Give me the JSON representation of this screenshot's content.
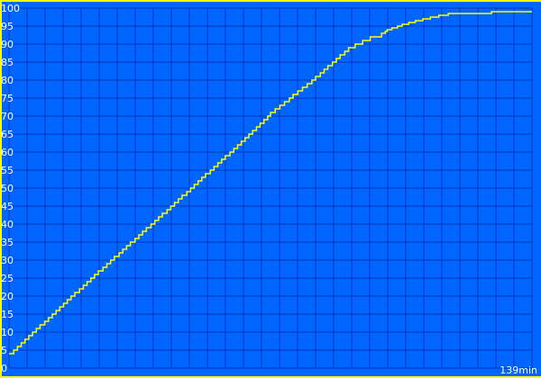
{
  "chart_data": {
    "type": "line",
    "title": "",
    "xlabel": "",
    "ylabel": "",
    "x_unit_label": "139min",
    "xlim": [
      0,
      139
    ],
    "ylim": [
      0,
      100
    ],
    "yticks": [
      0,
      5,
      10,
      15,
      20,
      25,
      30,
      35,
      40,
      45,
      50,
      55,
      60,
      65,
      70,
      75,
      80,
      85,
      90,
      95,
      100
    ],
    "ytick_labels": [
      "0",
      "5",
      "10",
      "15",
      "20",
      "25",
      "30",
      "35",
      "40",
      "45",
      "50",
      "55",
      "60",
      "65",
      "70",
      "75",
      "80",
      "85",
      "90",
      "95",
      "100"
    ],
    "grid": true,
    "step": true,
    "series": [
      {
        "color": "#ffff00",
        "x": [
          0,
          21.6,
          43.1,
          64,
          69.5,
          81.5,
          90.4,
          95.9,
          99.7,
          99.9,
          102.3,
          105.2,
          108.8,
          112.9,
          117.9,
          138.5,
          139
        ],
        "y": [
          3.5,
          24.5,
          44.75,
          64.75,
          70.5,
          80.5,
          88.75,
          91.5,
          92.75,
          93.5,
          94.5,
          95.5,
          96.5,
          97.5,
          98.5,
          99,
          99
        ]
      }
    ],
    "colors": {
      "background": "#0066ff",
      "grid": "#0033bb",
      "border": "#ffff00",
      "text": "#ffffff"
    }
  }
}
